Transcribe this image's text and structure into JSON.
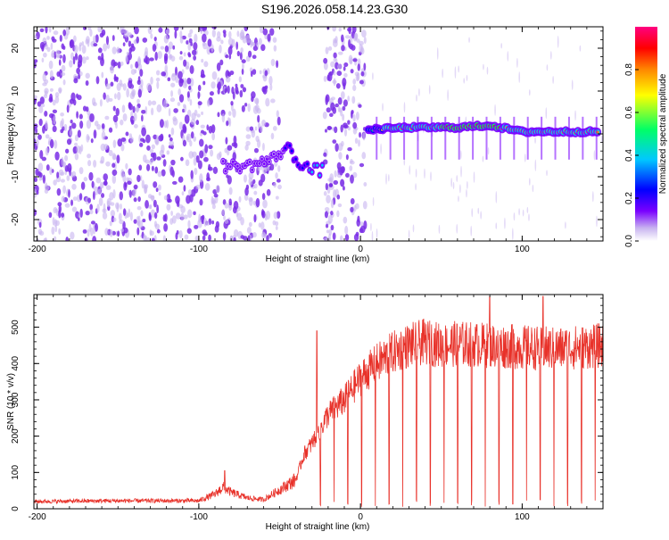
{
  "page_title": "S196.2026.058.14.23.G30",
  "colors": {
    "snr_line": "#e8322a",
    "heatmap_low": "#c8b4f0",
    "heatmap_mid": "#7a2ee6",
    "axis": "#000000"
  },
  "chart_data": [
    {
      "type": "heatmap",
      "xlabel": "Height of straight line (km)",
      "ylabel": "Frequency (Hz)",
      "xlim": [
        -202,
        150
      ],
      "ylim": [
        -25,
        25
      ],
      "xticks": [
        -200,
        -100,
        0,
        100
      ],
      "yticks": [
        -20,
        -10,
        0,
        10,
        20
      ],
      "grid": false,
      "colorbar": {
        "label": "Normalized spectral amplitude",
        "range": [
          0,
          1
        ],
        "ticks": [
          0.0,
          0.2,
          0.4,
          0.6,
          0.8
        ],
        "colormap": [
          "#ffffff",
          "#c8b4f0",
          "#7a00ff",
          "#0000ff",
          "#00c8ff",
          "#00ff66",
          "#ffff00",
          "#ff8800",
          "#ff0000",
          "#ff0080"
        ]
      },
      "ridge": [
        {
          "x": -85,
          "y": -7.5,
          "amp": 0.25
        },
        {
          "x": -70,
          "y": -7.5,
          "amp": 0.2
        },
        {
          "x": -55,
          "y": -6,
          "amp": 0.2
        },
        {
          "x": -45,
          "y": -3,
          "amp": 0.3
        },
        {
          "x": -40,
          "y": -6,
          "amp": 0.35
        },
        {
          "x": -30,
          "y": -8.5,
          "amp": 0.4
        },
        {
          "x": -22,
          "y": -8.5,
          "amp": 0.45
        },
        {
          "x": 5,
          "y": 1,
          "amp": 0.55
        },
        {
          "x": 30,
          "y": 1.5,
          "amp": 0.8
        },
        {
          "x": 60,
          "y": 1.5,
          "amp": 0.85
        },
        {
          "x": 80,
          "y": 2,
          "amp": 0.85
        },
        {
          "x": 100,
          "y": 0.5,
          "amp": 0.8
        },
        {
          "x": 130,
          "y": 0.5,
          "amp": 0.8
        },
        {
          "x": 148,
          "y": 0.5,
          "amp": 0.75
        }
      ],
      "blank_band_x": [
        -50,
        -22
      ]
    },
    {
      "type": "line",
      "xlabel": "Height of straight line (km)",
      "ylabel": "SNR (10 * v/v)",
      "xlim": [
        -202,
        150
      ],
      "ylim": [
        0,
        590
      ],
      "xticks": [
        -200,
        -100,
        0,
        100
      ],
      "yticks": [
        0,
        100,
        200,
        300,
        400,
        500
      ],
      "grid": false,
      "series": [
        {
          "envelope_x": [
            -202,
            -150,
            -100,
            -90,
            -85,
            -80,
            -70,
            -60,
            -40,
            -35,
            -30,
            -25,
            -20,
            -10,
            0,
            10,
            20,
            30,
            40,
            50,
            60,
            80,
            100,
            120,
            150
          ],
          "envelope_y": [
            20,
            22,
            22,
            40,
            60,
            45,
            30,
            25,
            80,
            150,
            180,
            220,
            260,
            300,
            360,
            400,
            430,
            450,
            460,
            450,
            455,
            450,
            445,
            440,
            450
          ],
          "spikes": [
            {
              "x": -84,
              "y": 105
            },
            {
              "x": -27,
              "y": 490
            },
            {
              "x": 80,
              "y": 585
            },
            {
              "x": 113,
              "y": 585
            }
          ],
          "dip_period_km": 8.5,
          "dip_start_km": -25
        }
      ]
    }
  ]
}
